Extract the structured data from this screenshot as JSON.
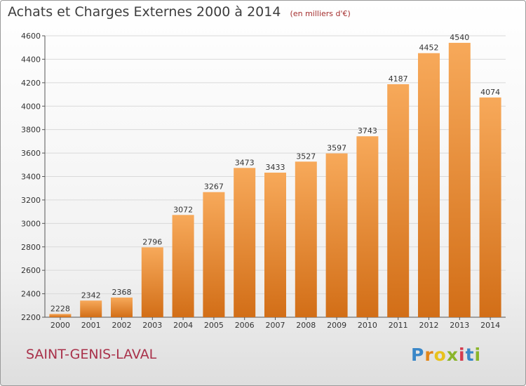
{
  "chart_data": {
    "type": "bar",
    "title": "Achats et Charges Externes 2000 à 2014",
    "unit_label": "(en milliers d'€)",
    "categories": [
      "2000",
      "2001",
      "2002",
      "2003",
      "2004",
      "2005",
      "2006",
      "2007",
      "2008",
      "2009",
      "2010",
      "2011",
      "2012",
      "2013",
      "2014"
    ],
    "values": [
      2228,
      2342,
      2368,
      2796,
      3072,
      3267,
      3473,
      3433,
      3527,
      3597,
      3743,
      4187,
      4452,
      4540,
      4074
    ],
    "ylim": [
      2200,
      4600
    ],
    "yticks": [
      2200,
      2400,
      2600,
      2800,
      3000,
      3200,
      3400,
      3600,
      3800,
      4000,
      4200,
      4400,
      4600
    ],
    "grid": true,
    "bar_color_light": "#f7a95a",
    "bar_color_dark": "#d26e17"
  },
  "location_label": "SAINT-GENIS-LAVAL",
  "brand": {
    "letters": [
      "P",
      "r",
      "o",
      "x",
      "i",
      "t",
      "i"
    ],
    "colors": [
      "#3a87c8",
      "#e2861a",
      "#e8c21c",
      "#8ab52a",
      "#d43b4e",
      "#3a87c8",
      "#8ab52a"
    ]
  }
}
